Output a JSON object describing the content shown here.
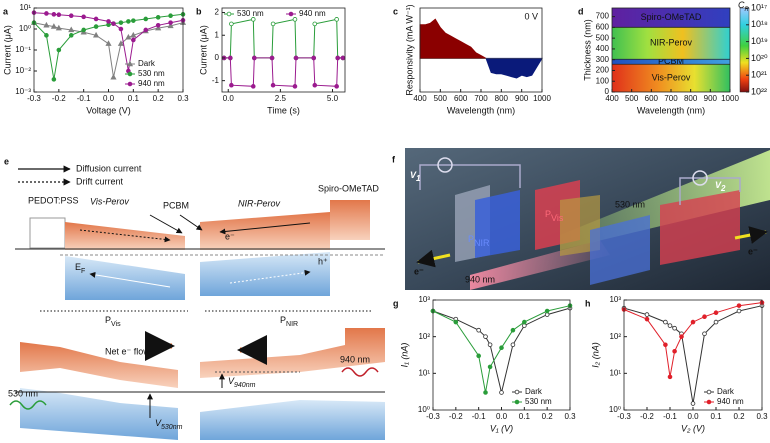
{
  "chart_data": [
    {
      "type": "line",
      "label": "a",
      "xlabel": "Voltage (V)",
      "ylabel": "Current (μA)",
      "log_y": true,
      "xlim": [
        -0.3,
        0.3
      ],
      "xticks": [
        -0.3,
        -0.2,
        -0.1,
        {
          "value": 0,
          "label": "0.0"
        },
        0.1,
        0.2,
        0.3
      ],
      "ylim": [
        0.001,
        10
      ],
      "yticks": [
        {
          "value": 0.001,
          "label": "10⁻³"
        },
        {
          "value": 0.01,
          "label": "10⁻²"
        },
        {
          "value": 0.1,
          "label": "10⁻¹"
        },
        {
          "value": 1,
          "label": "10⁰"
        },
        {
          "value": 10,
          "label": "10¹"
        }
      ],
      "legend": "lower right",
      "x": [
        -0.3,
        -0.25,
        -0.22,
        -0.2,
        -0.15,
        -0.1,
        -0.05,
        0,
        0.02,
        0.05,
        0.08,
        0.1,
        0.15,
        0.2,
        0.25,
        0.3
      ],
      "series": [
        {
          "name": "Dark",
          "color": "#808080",
          "marker": "triangle",
          "values": [
            2,
            1.5,
            1.3,
            1.1,
            0.9,
            0.7,
            0.5,
            0.2,
            0.005,
            0.2,
            0.4,
            0.5,
            0.8,
            1.1,
            1.4,
            2
          ]
        },
        {
          "name": "530 nm",
          "color": "#2a9d3a",
          "marker": "circle",
          "values": [
            2,
            0.5,
            0.004,
            0.1,
            0.5,
            0.9,
            1.3,
            1.6,
            1.8,
            2,
            2.3,
            2.5,
            3,
            3.6,
            4.3,
            5
          ]
        },
        {
          "name": "940 nm",
          "color": "#9b1b8f",
          "marker": "circle",
          "values": [
            6,
            5.5,
            5,
            4.8,
            4.3,
            3.8,
            3,
            2.3,
            1.8,
            1,
            0.01,
            0.3,
            0.9,
            1.5,
            2,
            2.6
          ]
        }
      ]
    },
    {
      "type": "line",
      "label": "b",
      "xlabel": "Time (s)",
      "ylabel": "Current (μA)",
      "xlim": [
        -0.3,
        5.6
      ],
      "xticks": [
        {
          "value": 0,
          "label": "0.0"
        },
        {
          "value": 2.5,
          "label": "2.5"
        },
        {
          "value": 5,
          "label": "5.0"
        }
      ],
      "ylim": [
        -1.5,
        2.2
      ],
      "yticks": [
        -1,
        0,
        1,
        2
      ],
      "legend": "top",
      "x": [
        -0.2,
        0.1,
        0.15,
        1.2,
        1.25,
        2.1,
        2.15,
        3.2,
        3.25,
        4.1,
        4.15,
        5.2,
        5.25,
        5.5
      ],
      "series": [
        {
          "name": "530 nm",
          "color": "#2a9d3a",
          "marker": "circle",
          "open": true,
          "values": [
            0,
            0,
            1.5,
            1.7,
            0,
            0,
            1.5,
            1.7,
            0,
            0,
            1.5,
            1.7,
            0,
            0
          ]
        },
        {
          "name": "940 nm",
          "color": "#9b1b8f",
          "marker": "circle",
          "values": [
            0,
            0,
            -1.2,
            -1.25,
            0,
            0,
            -1.2,
            -1.25,
            0,
            0,
            -1.2,
            -1.25,
            0,
            0
          ]
        }
      ]
    },
    {
      "type": "area",
      "label": "c",
      "xlabel": "Wavelength (nm)",
      "ylabel": "Responsivity (mA W⁻¹)",
      "annotation": "0 V",
      "xlim": [
        400,
        1000
      ],
      "xticks": [
        400,
        500,
        600,
        700,
        800,
        900,
        1000
      ],
      "ylim": [
        -12,
        18
      ],
      "x": [
        400,
        425,
        450,
        475,
        500,
        525,
        550,
        575,
        600,
        625,
        650,
        675,
        700,
        725,
        750,
        775,
        800,
        825,
        850,
        875,
        900,
        925,
        950,
        975,
        1000
      ],
      "series": [
        {
          "color": "#8b0000",
          "values": [
            12,
            12,
            12.5,
            14,
            11,
            9,
            8,
            7,
            6,
            5,
            4,
            2,
            1,
            0,
            null,
            null,
            null,
            null,
            null,
            null,
            null,
            null,
            null,
            null,
            null
          ]
        },
        {
          "color": "#0a1a7a",
          "values": [
            null,
            null,
            null,
            null,
            null,
            null,
            null,
            null,
            null,
            null,
            null,
            null,
            null,
            0,
            -5,
            -5.5,
            -5.5,
            -6,
            -6.5,
            -7,
            -6,
            -6.5,
            -6,
            -3,
            0
          ]
        }
      ]
    },
    {
      "type": "heatmap",
      "label": "d",
      "xlabel": "Wavelength (nm)",
      "ylabel": "Thickness (nm)",
      "xlim": [
        400,
        1000
      ],
      "xticks": [
        400,
        500,
        600,
        700,
        800,
        900,
        1000
      ],
      "ylim": [
        0,
        780
      ],
      "yticks": [
        0,
        100,
        200,
        300,
        400,
        500,
        600,
        700
      ],
      "layers": [
        "Vis-Perov",
        "PCBM",
        "NIR-Perov",
        "Spiro-OMeTAD"
      ],
      "colorbar_title": {
        "main": "C",
        "sub": "R"
      },
      "clim": [
        1e+17,
        1e+22
      ],
      "cticks": [
        {
          "value": 1e+17,
          "label": "10¹⁷"
        },
        {
          "value": 1e+18,
          "label": "10¹⁸"
        },
        {
          "value": 1e+19,
          "label": "10¹⁹"
        },
        {
          "value": 1e+20,
          "label": "10²⁰"
        },
        {
          "value": 1e+21,
          "label": "10²¹"
        },
        {
          "value": 1e+22,
          "label": "10²²"
        }
      ]
    },
    {
      "type": "line",
      "label": "g",
      "xlabel": "V₁ (V)",
      "ylabel": "I₁ (nA)",
      "log_y": true,
      "xlim": [
        -0.3,
        0.3
      ],
      "xticks": [
        -0.3,
        -0.2,
        -0.1,
        {
          "value": 0,
          "label": "0.0"
        },
        0.1,
        0.2,
        0.3
      ],
      "ylim": [
        1,
        1000
      ],
      "yticks": [
        {
          "value": 1,
          "label": "10⁰"
        },
        {
          "value": 10,
          "label": "10¹"
        },
        {
          "value": 100,
          "label": "10²"
        },
        {
          "value": 1000,
          "label": "10³"
        }
      ],
      "legend": "lower right",
      "x": [
        -0.3,
        -0.2,
        -0.1,
        -0.07,
        -0.05,
        0,
        0.05,
        0.1,
        0.2,
        0.3
      ],
      "series": [
        {
          "name": "Dark",
          "color": "#333333",
          "marker": "circle",
          "open": true,
          "values": [
            500,
            300,
            150,
            100,
            60,
            3,
            60,
            200,
            400,
            600
          ]
        },
        {
          "name": "530 nm",
          "color": "#2a9d3a",
          "marker": "circle",
          "values": [
            500,
            250,
            30,
            3,
            15,
            50,
            150,
            250,
            500,
            700
          ]
        }
      ]
    },
    {
      "type": "line",
      "label": "h",
      "xlabel": "V₂ (V)",
      "ylabel": "I₂ (nA)",
      "log_y": true,
      "xlim": [
        -0.3,
        0.3
      ],
      "xticks": [
        -0.3,
        -0.2,
        -0.1,
        {
          "value": 0,
          "label": "0.0"
        },
        0.1,
        0.2,
        0.3
      ],
      "ylim": [
        1,
        1000
      ],
      "yticks": [
        {
          "value": 1,
          "label": "10⁰"
        },
        {
          "value": 10,
          "label": "10¹"
        },
        {
          "value": 100,
          "label": "10²"
        },
        {
          "value": 1000,
          "label": "10³"
        }
      ],
      "legend": "lower right",
      "x": [
        -0.3,
        -0.2,
        -0.12,
        -0.1,
        -0.08,
        -0.05,
        0,
        0.05,
        0.1,
        0.2,
        0.3
      ],
      "series": [
        {
          "name": "Dark",
          "color": "#333333",
          "marker": "circle",
          "open": true,
          "values": [
            600,
            400,
            250,
            200,
            170,
            120,
            1.5,
            120,
            250,
            500,
            700
          ]
        },
        {
          "name": "940 nm",
          "color": "#e0202a",
          "marker": "circle",
          "values": [
            550,
            300,
            60,
            8,
            40,
            100,
            250,
            350,
            450,
            700,
            850
          ]
        }
      ]
    }
  ],
  "panel_e": {
    "label": "e",
    "legend": [
      "Diffusion current",
      "Drift current"
    ],
    "top_labels": [
      "PEDOT:PSS",
      "Vis-Perov",
      "PCBM",
      "NIR-Perov",
      "Spiro-OMeTAD"
    ],
    "fermi": {
      "main": "E",
      "sub": "F"
    },
    "electron": "e⁻",
    "hole": "h⁺",
    "p_vis": {
      "main": "P",
      "sub": "Vis"
    },
    "p_nir": {
      "main": "P",
      "sub": "NIR"
    },
    "net_flow": "Net e⁻ flow",
    "light_530": "530 nm",
    "light_940": "940 nm",
    "v_530": {
      "main": "V",
      "sub": "530nm"
    },
    "v_940": {
      "main": "V",
      "sub": "940nm"
    }
  },
  "panel_f": {
    "label": "f",
    "v1": {
      "main": "V",
      "sub": "1"
    },
    "v2": {
      "main": "V",
      "sub": "2"
    },
    "light_530": "530 nm",
    "light_940": "940 nm",
    "electrons": [
      "e⁻",
      "e⁻"
    ],
    "p_nir": {
      "main": "P",
      "sub": "NIR"
    },
    "p_vis": {
      "main": "P",
      "sub": "Vis"
    }
  }
}
